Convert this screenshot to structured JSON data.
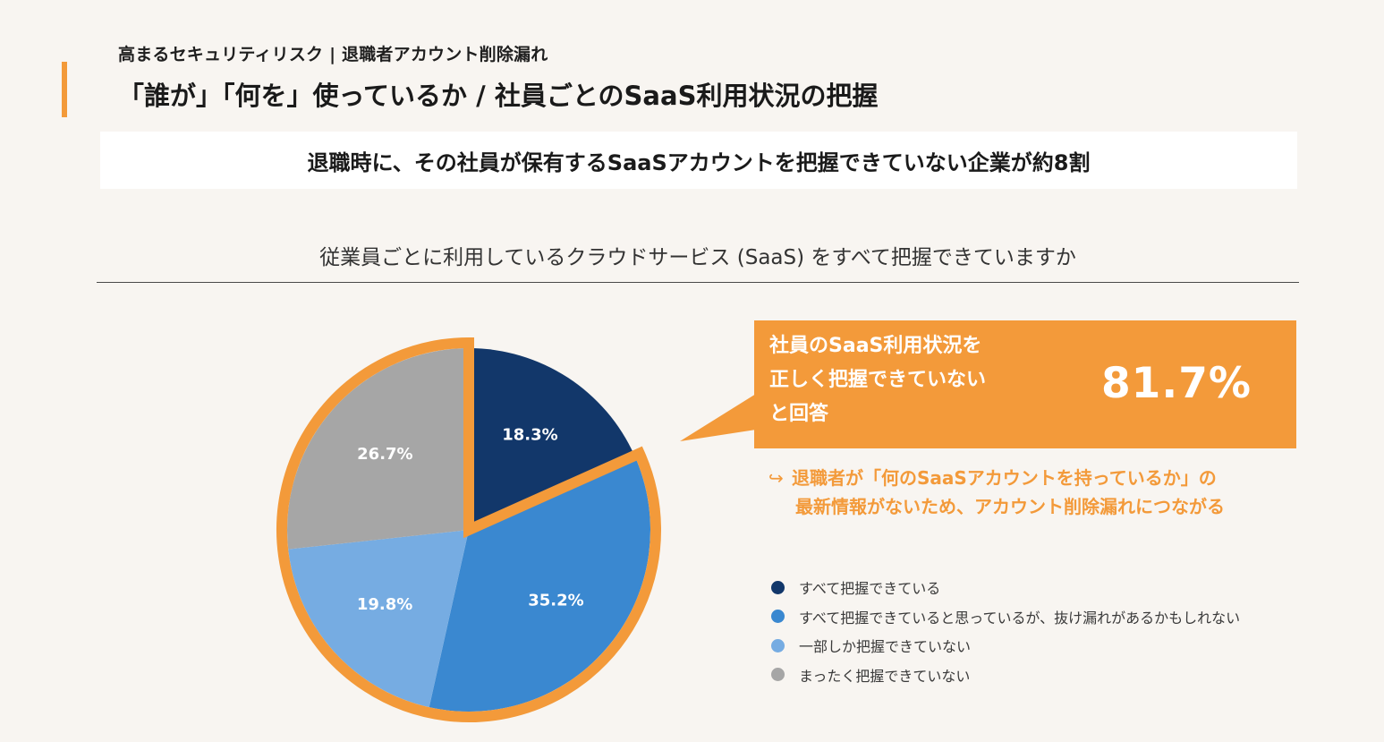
{
  "header": {
    "kicker": "高まるセキュリティリスク | 退職者アカウント削除漏れ",
    "title": "「誰が」「何を」使っているか / 社員ごとのSaaS利用状況の把握",
    "banner": "退職時に、その社員が保有するSaaSアカウントを把握できていない企業が約8割"
  },
  "colors": {
    "accent": "#f39a3a",
    "dark_navy": "#12376a",
    "mid_blue": "#3a88d0",
    "light_blue": "#76ace2",
    "gray": "#a6a6a6"
  },
  "callout": {
    "lines": [
      "社員のSaaS利用状況を",
      "正しく把握できていない",
      "と回答"
    ],
    "value": "81.7%"
  },
  "note": {
    "arrow": "↪",
    "line1": "退職者が「何のSaaSアカウントを持っているか」の",
    "line2": "最新情報がないため、アカウント削除漏れにつながる"
  },
  "chart_data": {
    "type": "pie",
    "title": "従業員ごとに利用しているクラウドサービス (SaaS) をすべて把握できていますか",
    "categories": [
      "すべて把握できている",
      "すべて把握できていると思っているが、抜け漏れがあるかもしれない",
      "一部しか把握できていない",
      "まったく把握できていない"
    ],
    "values": [
      18.3,
      35.2,
      19.8,
      26.7
    ],
    "labels": [
      "18.3%",
      "35.2%",
      "19.8%",
      "26.7%"
    ],
    "colors": [
      "#12376a",
      "#3a88d0",
      "#76ace2",
      "#a6a6a6"
    ],
    "highlighted": [
      "すべて把握できていると思っているが、抜け漏れがあるかもしれない",
      "一部しか把握できていない",
      "まったく把握できていない"
    ],
    "legend_position": "right"
  }
}
